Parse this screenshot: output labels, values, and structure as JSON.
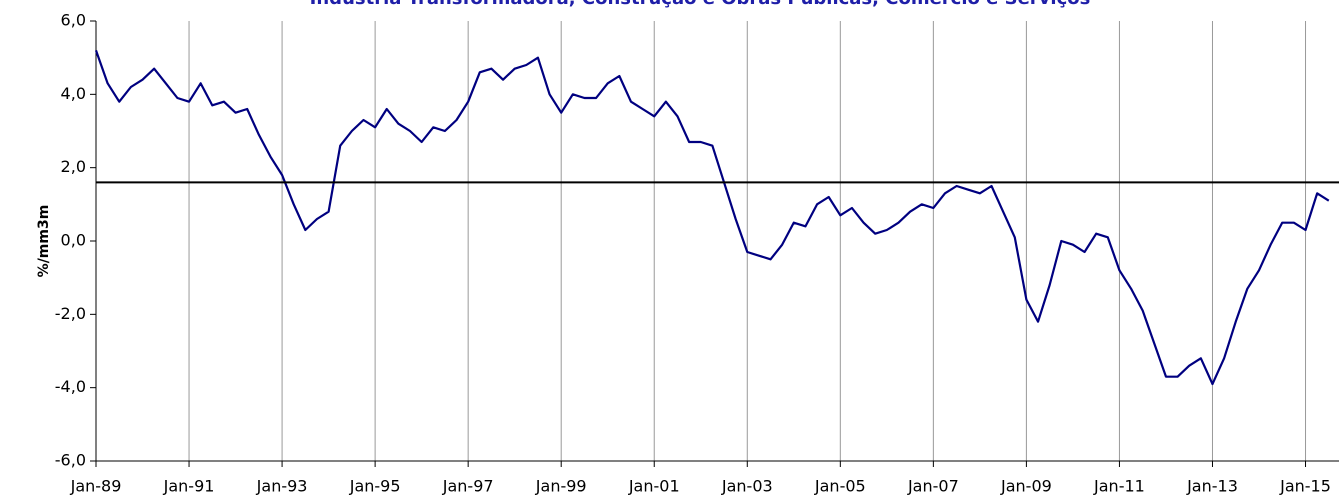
{
  "chart_data": {
    "type": "line",
    "title": "Indústria Transformadora, Construção e Obras Públicas, Comércio e Serviços",
    "y_label": "%/mm3m",
    "categories": [
      "Jan-89",
      null,
      null,
      null,
      null,
      null,
      null,
      null,
      "Jan-91",
      null,
      null,
      null,
      null,
      null,
      null,
      null,
      "Jan-93",
      null,
      null,
      null,
      null,
      null,
      null,
      null,
      "Jan-95",
      null,
      null,
      null,
      null,
      null,
      null,
      null,
      "Jan-97",
      null,
      null,
      null,
      null,
      null,
      null,
      null,
      "Jan-99",
      null,
      null,
      null,
      null,
      null,
      null,
      null,
      "Jan-01",
      null,
      null,
      null,
      null,
      null,
      null,
      null,
      "Jan-03",
      null,
      null,
      null,
      null,
      null,
      null,
      null,
      "Jan-05",
      null,
      null,
      null,
      null,
      null,
      null,
      null,
      "Jan-07",
      null,
      null,
      null,
      null,
      null,
      null,
      null,
      "Jan-09",
      null,
      null,
      null,
      null,
      null,
      null,
      null,
      "Jan-11",
      null,
      null,
      null,
      null,
      null,
      null,
      null,
      "Jan-13",
      null,
      null,
      null,
      null,
      null,
      null,
      null,
      "Jan-15",
      null,
      null
    ],
    "series": [
      {
        "color": "#000080",
        "values": [
          5.2,
          4.3,
          3.8,
          4.2,
          4.4,
          4.7,
          4.3,
          3.9,
          3.8,
          4.3,
          3.7,
          3.8,
          3.5,
          3.6,
          2.9,
          2.3,
          1.8,
          1.0,
          0.3,
          0.6,
          0.8,
          2.6,
          3.0,
          3.3,
          3.1,
          3.6,
          3.2,
          3.0,
          2.7,
          3.1,
          3.0,
          3.3,
          3.8,
          4.6,
          4.7,
          4.4,
          4.7,
          4.8,
          5.0,
          4.0,
          3.5,
          4.0,
          3.9,
          3.9,
          4.3,
          4.5,
          3.8,
          3.6,
          3.4,
          3.8,
          3.4,
          2.7,
          2.7,
          2.6,
          1.6,
          0.6,
          -0.3,
          -0.4,
          -0.5,
          -0.1,
          0.5,
          0.4,
          1.0,
          1.2,
          0.7,
          0.9,
          0.5,
          0.2,
          0.3,
          0.5,
          0.8,
          1.0,
          0.9,
          1.3,
          1.5,
          1.4,
          1.3,
          1.5,
          0.8,
          0.1,
          -1.6,
          -2.2,
          -1.2,
          0.0,
          -0.1,
          -0.3,
          0.2,
          0.1,
          -0.8,
          -1.3,
          -1.9,
          -2.8,
          -3.7,
          -3.7,
          -3.4,
          -3.2,
          -3.9,
          -3.2,
          -2.2,
          -1.3,
          -0.8,
          -0.1,
          0.5,
          0.5,
          0.3,
          1.3,
          1.1
        ]
      }
    ],
    "reference_line": {
      "value": 1.6,
      "color": "#000000"
    },
    "ylim": [
      -6,
      6
    ],
    "yticks": [
      {
        "value": -6,
        "label": "-6,0"
      },
      {
        "value": -4,
        "label": "-4,0"
      },
      {
        "value": -2,
        "label": "-2,0"
      },
      {
        "value": 0,
        "label": "0,0"
      },
      {
        "value": 2,
        "label": "2,0"
      },
      {
        "value": 4,
        "label": "4,0"
      },
      {
        "value": 6,
        "label": "6,0"
      }
    ],
    "x_grid": true
  }
}
